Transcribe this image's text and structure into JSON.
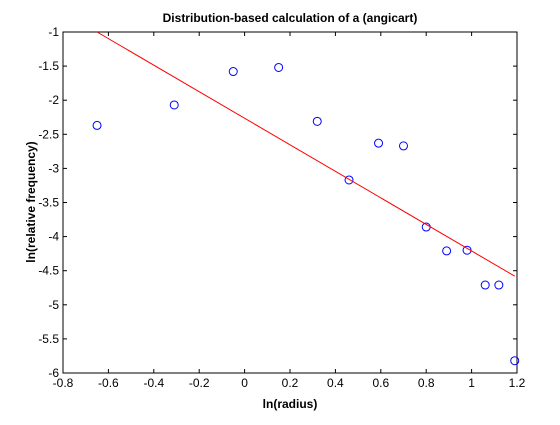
{
  "chart_data": {
    "type": "scatter",
    "title": "Distribution-based calculation of a (angicart)",
    "xlabel": "ln(radius)",
    "ylabel": "ln(relative frequency)",
    "xlim": [
      -0.8,
      1.2
    ],
    "ylim": [
      -6,
      -1
    ],
    "xticks": [
      -0.8,
      -0.6,
      -0.4,
      -0.2,
      0,
      0.2,
      0.4,
      0.6,
      0.8,
      1,
      1.2
    ],
    "xtick_labels": [
      "-0.8",
      "-0.6",
      "-0.4",
      "-0.2",
      "0",
      "0.2",
      "0.4",
      "0.6",
      "0.8",
      "1",
      "1.2"
    ],
    "yticks": [
      -1,
      -1.5,
      -2,
      -2.5,
      -3,
      -3.5,
      -4,
      -4.5,
      -5,
      -5.5,
      -6
    ],
    "ytick_labels": [
      "-1",
      "-1.5",
      "-2",
      "-2.5",
      "-3",
      "-3.5",
      "-4",
      "-4.5",
      "-5",
      "-5.5",
      "-6"
    ],
    "grid": false,
    "series": [
      {
        "type": "scatter",
        "marker": "circle",
        "color": "#0000ff",
        "x": [
          -0.65,
          -0.31,
          -0.05,
          0.15,
          0.32,
          0.46,
          0.59,
          0.7,
          0.8,
          0.89,
          0.98,
          1.06,
          1.12,
          1.19
        ],
        "y": [
          -2.37,
          -2.07,
          -1.58,
          -1.52,
          -2.31,
          -3.17,
          -2.63,
          -2.67,
          -3.86,
          -4.21,
          -4.2,
          -4.71,
          -4.71,
          -5.82
        ]
      },
      {
        "type": "line",
        "color": "#ff0000",
        "x": [
          -0.65,
          1.19
        ],
        "y": [
          -1.0,
          -4.58
        ]
      }
    ]
  }
}
